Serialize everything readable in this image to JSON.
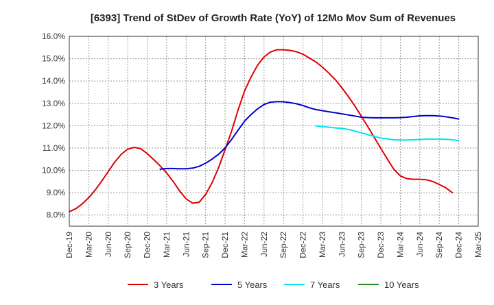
{
  "chart_data": {
    "type": "line",
    "title": "[6393]  Trend of StDev of Growth Rate (YoY) of 12Mo Mov Sum of Revenues",
    "xlabel": "",
    "ylabel": "",
    "x_tick_labels": [
      "Dec-19",
      "Mar-20",
      "Jun-20",
      "Sep-20",
      "Dec-20",
      "Mar-21",
      "Jun-21",
      "Sep-21",
      "Dec-21",
      "Mar-22",
      "Jun-22",
      "Sep-22",
      "Dec-22",
      "Mar-23",
      "Jun-23",
      "Sep-23",
      "Dec-23",
      "Mar-24",
      "Jun-24",
      "Sep-24",
      "Dec-24",
      "Mar-25"
    ],
    "y_ticks": [
      8.0,
      9.0,
      10.0,
      11.0,
      12.0,
      13.0,
      14.0,
      15.0,
      16.0
    ],
    "y_tick_labels": [
      "8.0%",
      "9.0%",
      "10.0%",
      "11.0%",
      "12.0%",
      "13.0%",
      "14.0%",
      "15.0%",
      "16.0%"
    ],
    "ylim": [
      7.5,
      16.0
    ],
    "x_range_months": [
      0,
      63
    ],
    "grid": true,
    "legend_position": "bottom",
    "series": [
      {
        "name": "3 Years",
        "color": "#dd0000",
        "x": [
          0,
          1,
          2,
          3,
          4,
          5,
          6,
          7,
          8,
          9,
          10,
          11,
          12,
          13,
          14,
          15,
          16,
          17,
          18,
          19,
          20,
          21,
          22,
          23,
          24,
          25,
          26,
          27,
          28,
          29,
          30,
          31,
          32,
          33,
          34,
          35,
          36,
          37,
          38,
          39,
          40,
          41,
          42,
          43,
          44,
          45,
          46,
          47,
          48,
          49,
          50,
          51,
          52,
          53,
          54,
          55,
          56,
          57,
          58,
          59,
          60
        ],
        "values": [
          8.15,
          8.28,
          8.5,
          8.78,
          9.12,
          9.52,
          9.95,
          10.37,
          10.72,
          10.95,
          11.03,
          10.97,
          10.75,
          10.48,
          10.2,
          9.88,
          9.5,
          9.08,
          8.72,
          8.53,
          8.57,
          8.92,
          9.45,
          10.12,
          10.92,
          11.75,
          12.7,
          13.55,
          14.18,
          14.7,
          15.08,
          15.3,
          15.4,
          15.4,
          15.37,
          15.31,
          15.2,
          15.03,
          14.85,
          14.62,
          14.35,
          14.05,
          13.7,
          13.3,
          12.88,
          12.42,
          11.95,
          11.47,
          10.98,
          10.5,
          10.05,
          9.75,
          9.63,
          9.6,
          9.6,
          9.58,
          9.5,
          9.37,
          9.22,
          9.0,
          null
        ]
      },
      {
        "name": "5 Years",
        "color": "#0000cc",
        "x": [
          14,
          15,
          16,
          17,
          18,
          19,
          20,
          21,
          22,
          23,
          24,
          25,
          26,
          27,
          28,
          29,
          30,
          31,
          32,
          33,
          34,
          35,
          36,
          37,
          38,
          39,
          40,
          41,
          42,
          43,
          44,
          45,
          46,
          47,
          48,
          49,
          50,
          51,
          52,
          53,
          54,
          55,
          56,
          57,
          58,
          59,
          60
        ],
        "values": [
          10.05,
          10.08,
          10.08,
          10.07,
          10.07,
          10.1,
          10.18,
          10.32,
          10.5,
          10.72,
          11.0,
          11.38,
          11.8,
          12.2,
          12.5,
          12.75,
          12.95,
          13.05,
          13.08,
          13.07,
          13.03,
          12.98,
          12.9,
          12.8,
          12.72,
          12.67,
          12.62,
          12.58,
          12.53,
          12.48,
          12.43,
          12.38,
          12.36,
          12.35,
          12.35,
          12.35,
          12.35,
          12.36,
          12.38,
          12.41,
          12.44,
          12.45,
          12.45,
          12.43,
          12.4,
          12.35,
          12.3
        ]
      },
      {
        "name": "7 Years",
        "color": "#00e5ee",
        "x": [
          38,
          39,
          40,
          41,
          42,
          43,
          44,
          45,
          46,
          47,
          48,
          49,
          50,
          51,
          52,
          53,
          54,
          55,
          56,
          57,
          58,
          59,
          60
        ],
        "values": [
          11.99,
          11.96,
          11.93,
          11.9,
          11.88,
          11.83,
          11.76,
          11.68,
          11.6,
          11.52,
          11.45,
          11.4,
          11.37,
          11.36,
          11.36,
          11.37,
          11.38,
          11.4,
          11.4,
          11.4,
          11.39,
          11.37,
          11.33
        ]
      },
      {
        "name": "10 Years",
        "color": "#228b22",
        "x": [],
        "values": []
      }
    ]
  }
}
